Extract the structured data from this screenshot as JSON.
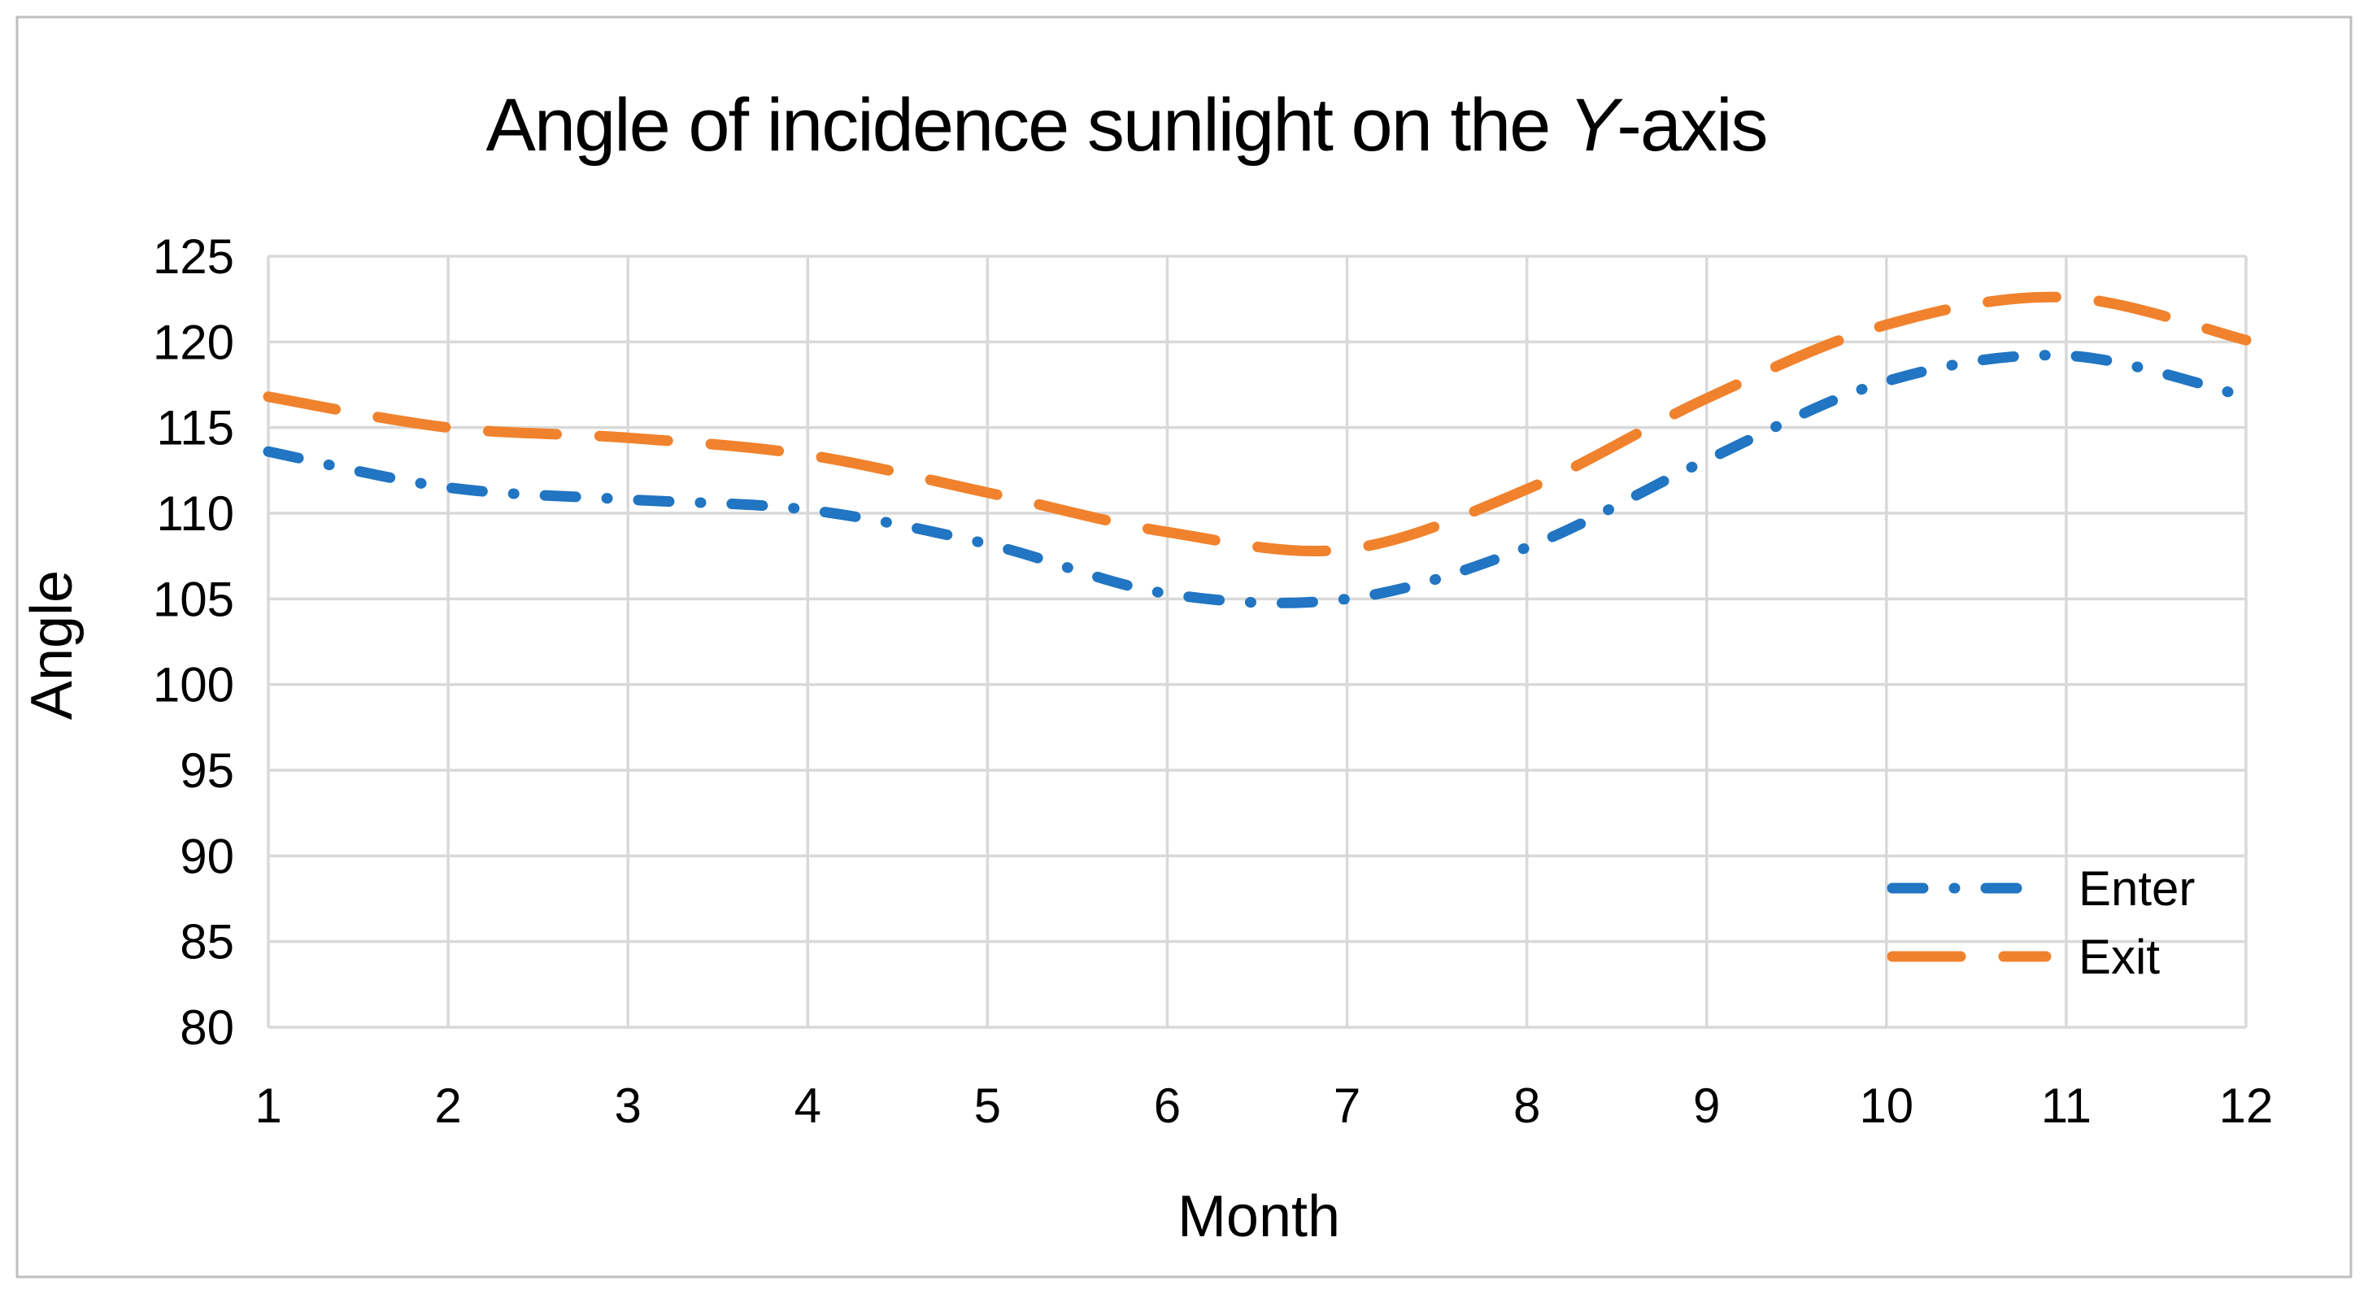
{
  "figure": {
    "title_prefix": "Angle of incidence sunlight on the ",
    "title_italic": "Y",
    "title_suffix": "-axis",
    "y_axis_title": "Angle",
    "x_axis_title": "Month"
  },
  "legend": {
    "entries": [
      {
        "label": "Enter",
        "series": "Enter"
      },
      {
        "label": "Exit",
        "series": "Exit"
      }
    ]
  },
  "colors": {
    "enter_line": "#2175C2",
    "exit_line": "#F0822D",
    "gridline": "#D9D9D9",
    "frame_border": "#BFBFBF",
    "text": "#000000",
    "background": "#FFFFFF"
  },
  "chart_data": {
    "type": "line",
    "title": "Angle of incidence sunlight on the Y-axis",
    "xlabel": "Month",
    "ylabel": "Angle",
    "x": [
      1,
      2,
      3,
      4,
      5,
      6,
      7,
      8,
      9,
      10,
      11,
      12
    ],
    "xtick_labels": [
      "1",
      "2",
      "3",
      "4",
      "5",
      "6",
      "7",
      "8",
      "9",
      "10",
      "11",
      "12"
    ],
    "ytick_labels": [
      "80",
      "85",
      "90",
      "95",
      "100",
      "105",
      "110",
      "115",
      "120",
      "125"
    ],
    "ylim": [
      80,
      125
    ],
    "ytick_step": 5,
    "grid": true,
    "line_smoothing": true,
    "legend_position": "inside-right",
    "series": [
      {
        "name": "Enter",
        "style": "dash-dot",
        "color": "#2175C2",
        "values": [
          113.6,
          111.5,
          110.8,
          110.2,
          108.2,
          105.3,
          105.0,
          108.0,
          113.1,
          117.7,
          119.2,
          116.8
        ]
      },
      {
        "name": "Exit",
        "style": "long-dash",
        "color": "#F0822D",
        "values": [
          116.8,
          115.0,
          114.4,
          113.4,
          111.2,
          108.9,
          107.9,
          111.4,
          116.7,
          121.0,
          122.6,
          120.1
        ]
      }
    ]
  }
}
